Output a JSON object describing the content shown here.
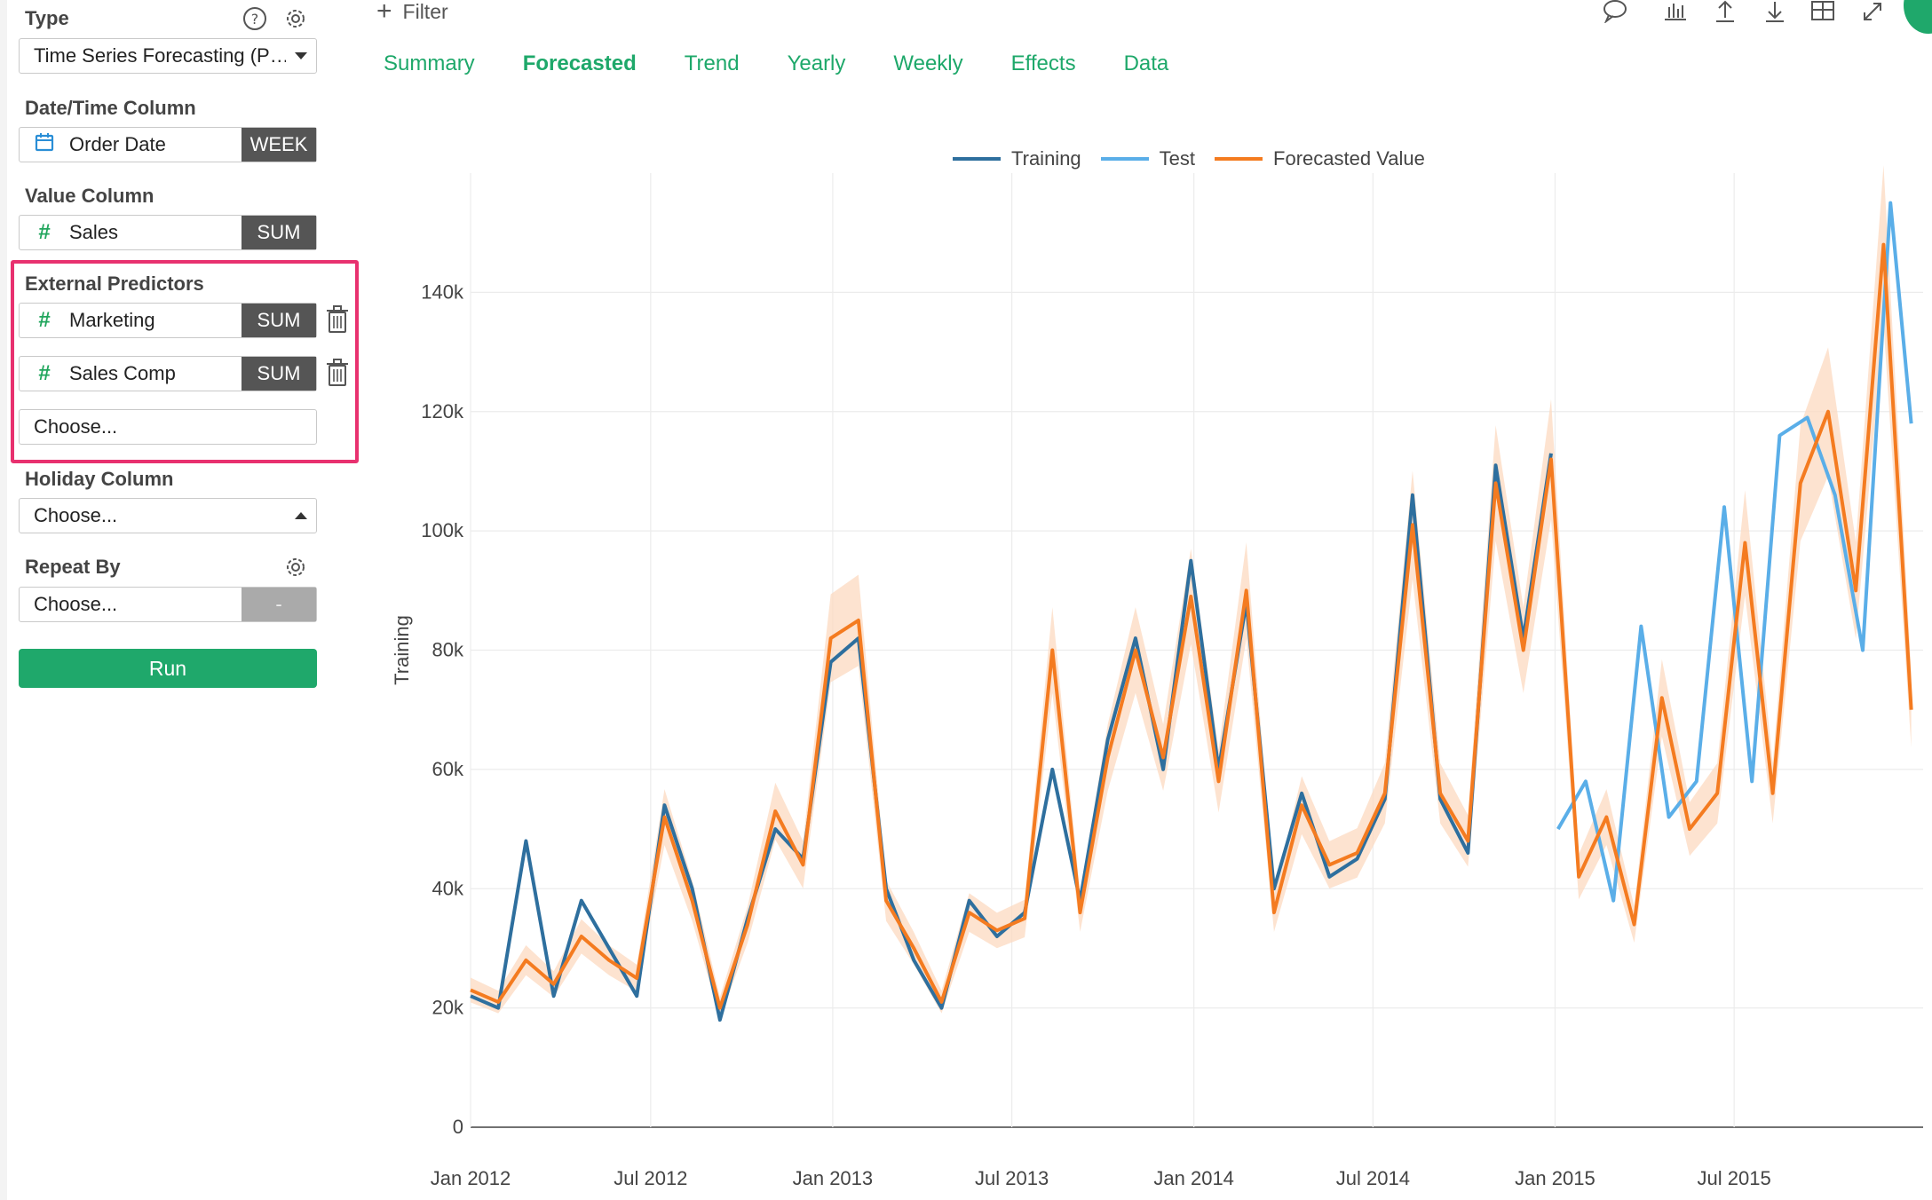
{
  "sidebar": {
    "type_label": "Type",
    "type_value": "Time Series Forecasting (P…",
    "datetime_label": "Date/Time Column",
    "datetime_value": "Order Date",
    "datetime_unit": "WEEK",
    "value_label": "Value Column",
    "value_value": "Sales",
    "value_agg": "SUM",
    "external_label": "External Predictors",
    "predictors": [
      {
        "name": "Marketing",
        "agg": "SUM"
      },
      {
        "name": "Sales Comp",
        "agg": "SUM"
      }
    ],
    "predictor_placeholder": "Choose...",
    "holiday_label": "Holiday Column",
    "holiday_value": "Choose...",
    "repeat_label": "Repeat By",
    "repeat_value": "Choose...",
    "repeat_agg": "-",
    "run_label": "Run",
    "icons": {
      "help": "help-icon",
      "settings": "gear-icon",
      "calendar": "calendar-icon",
      "trash": "trash-icon"
    }
  },
  "toolbar": {
    "filter_label": "Filter",
    "icons": [
      "comment-icon",
      "bar-chart-icon",
      "upload-icon",
      "download-icon",
      "table-icon",
      "expand-icon"
    ]
  },
  "tabs": [
    {
      "label": "Summary",
      "active": false
    },
    {
      "label": "Forecasted",
      "active": true
    },
    {
      "label": "Trend",
      "active": false
    },
    {
      "label": "Yearly",
      "active": false
    },
    {
      "label": "Weekly",
      "active": false
    },
    {
      "label": "Effects",
      "active": false
    },
    {
      "label": "Data",
      "active": false
    }
  ],
  "colors": {
    "accent": "#1fa86b",
    "highlight": "#e8316f",
    "training": "#2e6f9e",
    "test": "#5aaee8",
    "forecast": "#f47b20",
    "band": "#fcd9c0"
  },
  "chart_data": {
    "type": "line",
    "ylabel": "Training",
    "xlabel": "",
    "ylim": [
      0,
      160000
    ],
    "yticks": [
      0,
      20000,
      40000,
      60000,
      80000,
      100000,
      120000,
      140000
    ],
    "ytick_labels": [
      "0",
      "20k",
      "40k",
      "60k",
      "80k",
      "100k",
      "120k",
      "140k"
    ],
    "xticks": [
      "2012-01-01",
      "2012-07-01",
      "2013-01-01",
      "2013-07-01",
      "2014-01-01",
      "2014-07-01",
      "2015-01-01",
      "2015-07-01"
    ],
    "xtick_labels": [
      "Jan 2012",
      "Jul 2012",
      "Jan 2013",
      "Jul 2013",
      "Jan 2014",
      "Jul 2014",
      "Jan 2015",
      "Jul 2015"
    ],
    "xlim": [
      "2012-01-01",
      "2016-01-08"
    ],
    "legend": "top-center",
    "grid": true,
    "series": [
      {
        "name": "Training",
        "x": [
          "2012-01-01",
          "2012-01-29",
          "2012-02-26",
          "2012-03-25",
          "2012-04-22",
          "2012-05-20",
          "2012-06-17",
          "2012-07-15",
          "2012-08-12",
          "2012-09-09",
          "2012-10-07",
          "2012-11-04",
          "2012-12-02",
          "2012-12-30",
          "2013-01-27",
          "2013-02-24",
          "2013-03-24",
          "2013-04-21",
          "2013-05-19",
          "2013-06-16",
          "2013-07-14",
          "2013-08-11",
          "2013-09-08",
          "2013-10-06",
          "2013-11-03",
          "2013-12-01",
          "2013-12-29",
          "2014-01-26",
          "2014-02-23",
          "2014-03-23",
          "2014-04-20",
          "2014-05-18",
          "2014-06-15",
          "2014-07-13",
          "2014-08-10",
          "2014-09-07",
          "2014-10-05",
          "2014-11-02",
          "2014-11-30",
          "2014-12-28"
        ],
        "y": [
          22000,
          20000,
          48000,
          22000,
          38000,
          30000,
          22000,
          54000,
          40000,
          18000,
          35000,
          50000,
          45000,
          78000,
          82000,
          40000,
          28000,
          20000,
          38000,
          32000,
          36000,
          60000,
          38000,
          65000,
          82000,
          60000,
          95000,
          60000,
          88000,
          40000,
          56000,
          42000,
          45000,
          55000,
          106000,
          55000,
          46000,
          111000,
          82000,
          113000
        ]
      },
      {
        "name": "Test",
        "x": [
          "2015-01-04",
          "2015-02-01",
          "2015-03-01",
          "2015-03-29",
          "2015-04-26",
          "2015-05-24",
          "2015-06-21",
          "2015-07-19",
          "2015-08-16",
          "2015-09-13",
          "2015-10-11",
          "2015-11-08",
          "2015-12-06",
          "2015-12-27"
        ],
        "y": [
          50000,
          58000,
          38000,
          84000,
          52000,
          58000,
          104000,
          58000,
          116000,
          119000,
          106000,
          80000,
          155000,
          118000
        ]
      },
      {
        "name": "Forecasted Value",
        "x": [
          "2012-01-01",
          "2012-01-29",
          "2012-02-26",
          "2012-03-25",
          "2012-04-22",
          "2012-05-20",
          "2012-06-17",
          "2012-07-15",
          "2012-08-12",
          "2012-09-09",
          "2012-10-07",
          "2012-11-04",
          "2012-12-02",
          "2012-12-30",
          "2013-01-27",
          "2013-02-24",
          "2013-03-24",
          "2013-04-21",
          "2013-05-19",
          "2013-06-16",
          "2013-07-14",
          "2013-08-11",
          "2013-09-08",
          "2013-10-06",
          "2013-11-03",
          "2013-12-01",
          "2013-12-29",
          "2014-01-26",
          "2014-02-23",
          "2014-03-23",
          "2014-04-20",
          "2014-05-18",
          "2014-06-15",
          "2014-07-13",
          "2014-08-10",
          "2014-09-07",
          "2014-10-05",
          "2014-11-02",
          "2014-11-30",
          "2014-12-28",
          "2015-01-25",
          "2015-02-22",
          "2015-03-22",
          "2015-04-19",
          "2015-05-17",
          "2015-06-14",
          "2015-07-12",
          "2015-08-09",
          "2015-09-06",
          "2015-10-04",
          "2015-11-01",
          "2015-11-29",
          "2015-12-27"
        ],
        "y": [
          23000,
          21000,
          28000,
          24000,
          32000,
          28000,
          25000,
          52000,
          38000,
          20000,
          34000,
          53000,
          44000,
          82000,
          85000,
          38000,
          30000,
          21000,
          36000,
          33000,
          35000,
          80000,
          36000,
          62000,
          80000,
          62000,
          89000,
          58000,
          90000,
          36000,
          54000,
          44000,
          46000,
          56000,
          101000,
          56000,
          48000,
          108000,
          80000,
          112000,
          42000,
          52000,
          34000,
          72000,
          50000,
          56000,
          98000,
          56000,
          108000,
          120000,
          90000,
          148000,
          70000
        ]
      }
    ]
  }
}
